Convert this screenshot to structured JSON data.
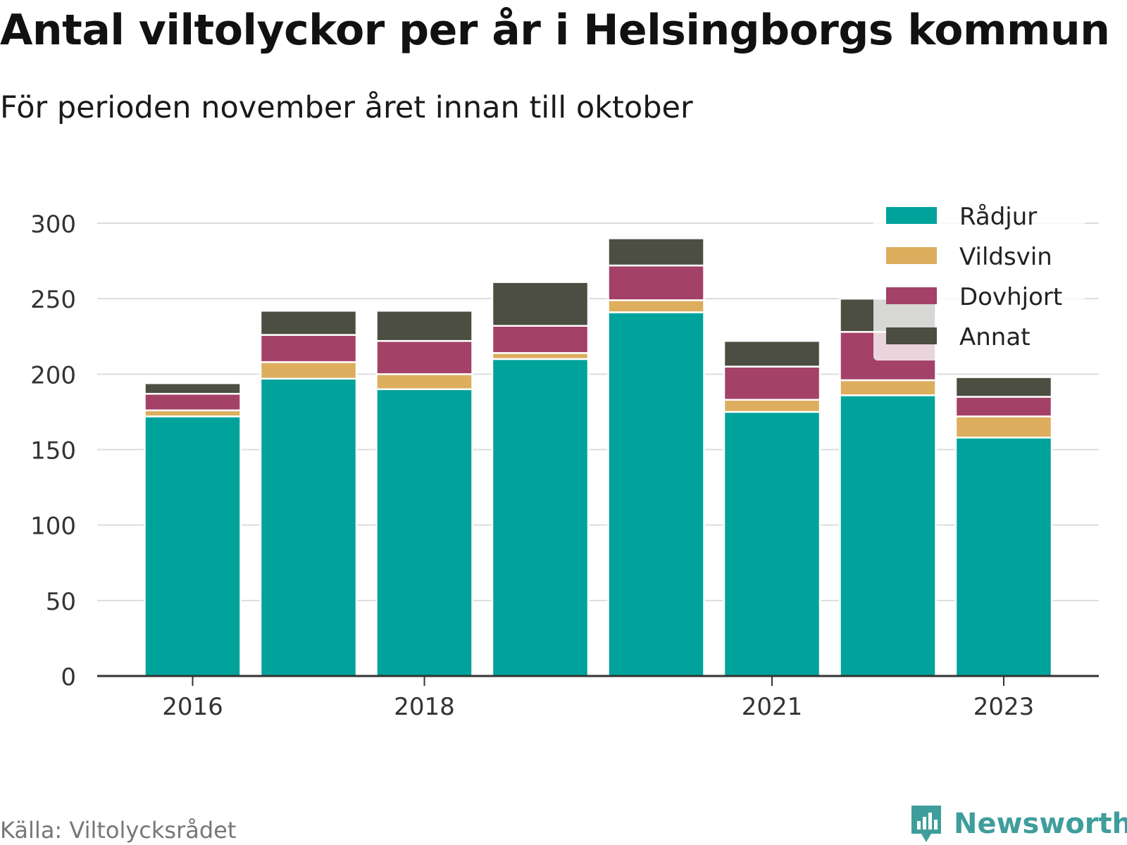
{
  "header": {
    "title": "Antal viltolyckor per år i Helsingborgs kommun",
    "subtitle": "För perioden november året innan till oktober"
  },
  "footer": {
    "source": "Källa: Viltolycksrådet",
    "brand": "Newsworthy"
  },
  "colors": {
    "gridline": "#dddddd",
    "axis": "#333333",
    "brand": "#3f9e9c"
  },
  "chart_data": {
    "type": "bar",
    "stacked": true,
    "categories": [
      "2016",
      "2017",
      "2018",
      "2019",
      "2020",
      "2021",
      "2022",
      "2023"
    ],
    "tick_labels": [
      "2016",
      "",
      "2018",
      "",
      "",
      "2021",
      "",
      "2023"
    ],
    "series": [
      {
        "name": "Rådjur",
        "color": "#00a39b",
        "values": [
          172,
          197,
          190,
          210,
          241,
          175,
          186,
          158
        ]
      },
      {
        "name": "Vildsvin",
        "color": "#dcae5e",
        "values": [
          4,
          11,
          10,
          4,
          8,
          8,
          10,
          14
        ]
      },
      {
        "name": "Dovhjort",
        "color": "#a44167",
        "values": [
          11,
          18,
          22,
          18,
          23,
          22,
          32,
          13
        ]
      },
      {
        "name": "Annat",
        "color": "#4b4e41",
        "values": [
          7,
          16,
          20,
          29,
          18,
          17,
          22,
          13
        ]
      }
    ],
    "ylim": [
      0,
      300
    ],
    "yticks": [
      0,
      50,
      100,
      150,
      200,
      250,
      300
    ],
    "grid": true,
    "legend_position": "top-right"
  }
}
